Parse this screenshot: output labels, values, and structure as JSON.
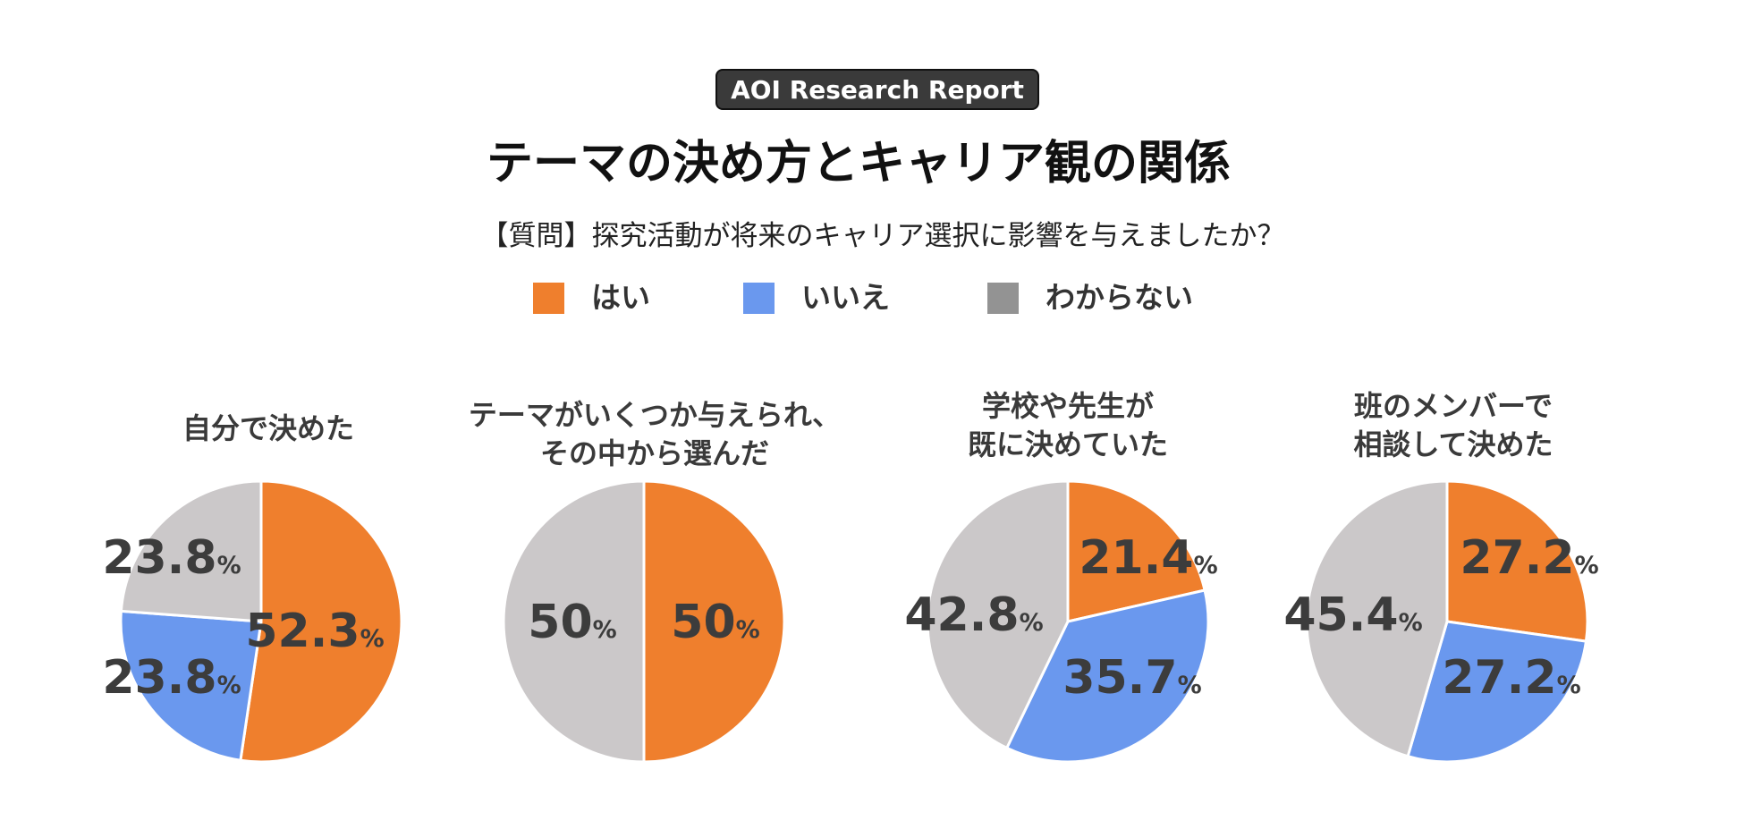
{
  "header": {
    "badge": "AOI Research Report",
    "title": "テーマの決め方とキャリア観の関係",
    "question": "【質問】探究活動が将来のキャリア選択に影響を与えましたか？"
  },
  "legend": [
    {
      "label": "はい",
      "color": "#EF7F2D"
    },
    {
      "label": "いいえ",
      "color": "#6A98EE"
    },
    {
      "label": "わからない",
      "color": "#939393"
    }
  ],
  "slice_colors": {
    "はい": "#EF7F2D",
    "いいえ": "#6A98EE",
    "わからない": "#CBC8C9"
  },
  "percent_sign": "%",
  "chart_data": [
    {
      "type": "pie",
      "title_lines": [
        "自分で決めた"
      ],
      "slices": [
        {
          "category": "はい",
          "value": 52.3,
          "label": "52.3"
        },
        {
          "category": "いいえ",
          "value": 23.8,
          "label": "23.8"
        },
        {
          "category": "わからない",
          "value": 23.8,
          "label": "23.8"
        }
      ]
    },
    {
      "type": "pie",
      "title_lines": [
        "テーマがいくつか与えられ、",
        "その中から選んだ"
      ],
      "slices": [
        {
          "category": "はい",
          "value": 50,
          "label": "50"
        },
        {
          "category": "いいえ",
          "value": 0,
          "label": ""
        },
        {
          "category": "わからない",
          "value": 50,
          "label": "50"
        }
      ]
    },
    {
      "type": "pie",
      "title_lines": [
        "学校や先生が",
        "既に決めていた"
      ],
      "slices": [
        {
          "category": "はい",
          "value": 21.4,
          "label": "21.4"
        },
        {
          "category": "いいえ",
          "value": 35.7,
          "label": "35.7"
        },
        {
          "category": "わからない",
          "value": 42.8,
          "label": "42.8"
        }
      ]
    },
    {
      "type": "pie",
      "title_lines": [
        "班のメンバーで",
        "相談して決めた"
      ],
      "slices": [
        {
          "category": "はい",
          "value": 27.2,
          "label": "27.2"
        },
        {
          "category": "いいえ",
          "value": 27.2,
          "label": "27.2"
        },
        {
          "category": "わからない",
          "value": 45.4,
          "label": "45.4"
        }
      ]
    }
  ]
}
